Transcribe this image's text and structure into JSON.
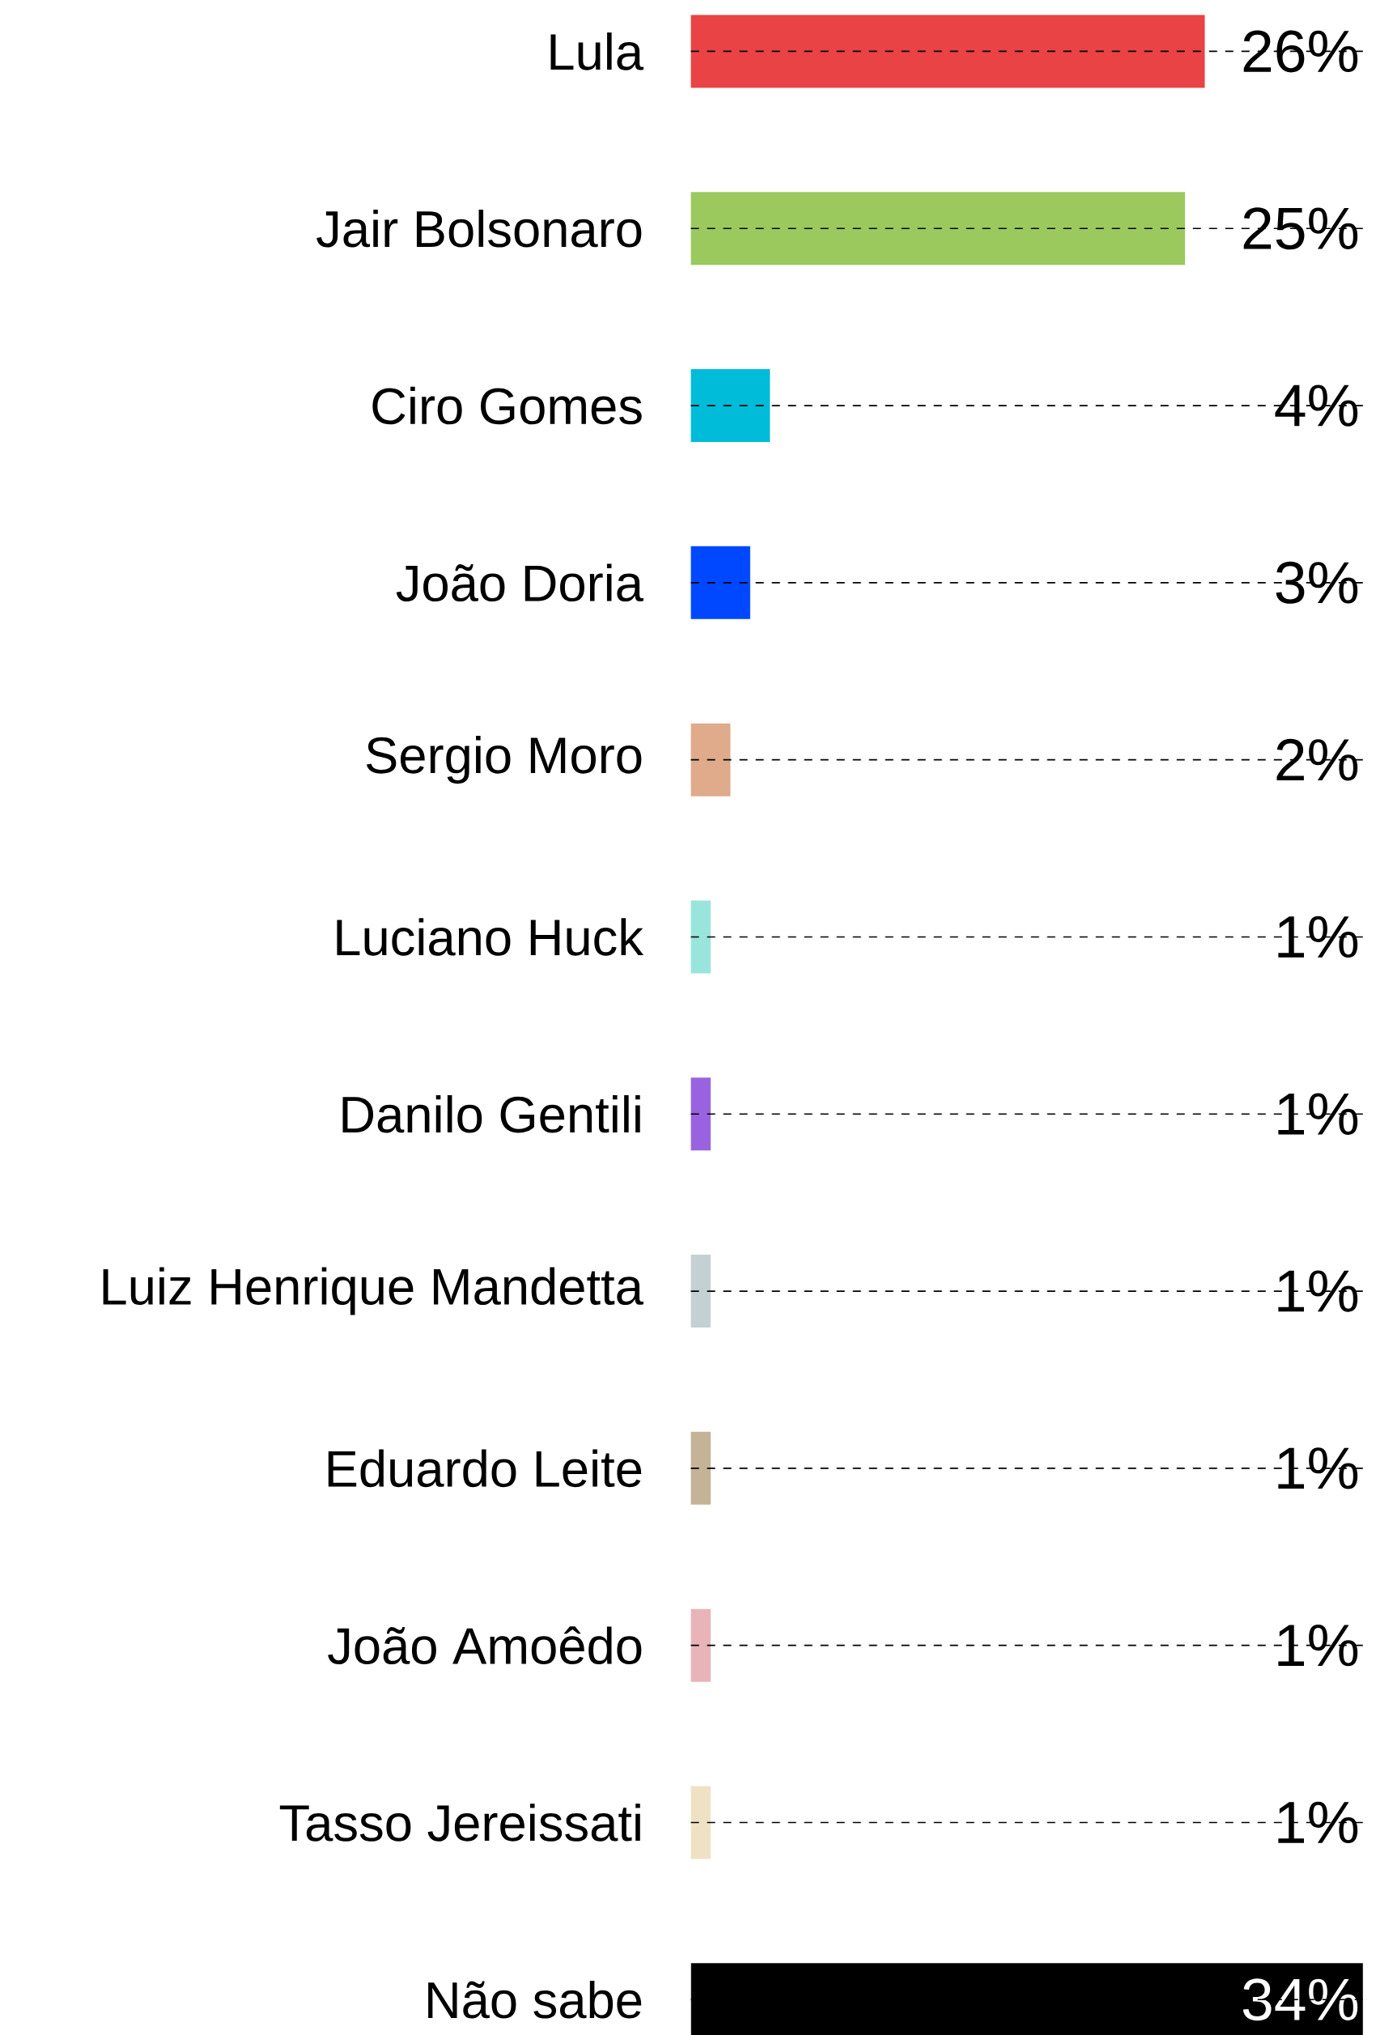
{
  "chart_data": {
    "type": "bar",
    "orientation": "horizontal",
    "data_labels": true,
    "grid": "y",
    "categories": [
      "Lula",
      "Jair Bolsonaro",
      "Ciro Gomes",
      "João Doria",
      "Sergio Moro",
      "Luciano Huck",
      "Danilo Gentili",
      "Luiz Henrique Mandetta",
      "Eduardo Leite",
      "João Amoêdo",
      "Tasso Jereissati",
      "Não sabe"
    ],
    "values": [
      26,
      25,
      4,
      3,
      2,
      1,
      1,
      1,
      1,
      1,
      1,
      34
    ],
    "value_labels": [
      "26%",
      "25%",
      "4%",
      "3%",
      "2%",
      "1%",
      "1%",
      "1%",
      "1%",
      "1%",
      "1%",
      "34%"
    ],
    "colors": [
      "#e94345",
      "#9bc95e",
      "#00bcd8",
      "#0048ff",
      "#e0ab8b",
      "#99e5dc",
      "#9963e0",
      "#c3d1d5",
      "#c5b398",
      "#e8b4b8",
      "#efe2c4",
      "#000000"
    ]
  }
}
